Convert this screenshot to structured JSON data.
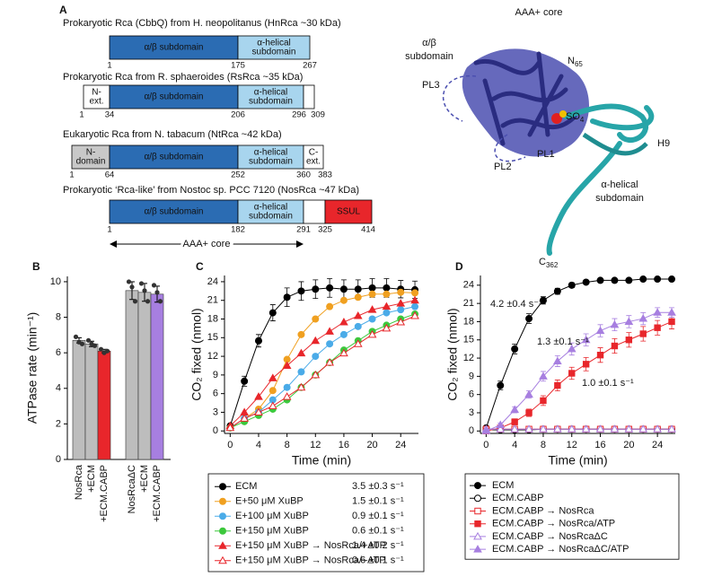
{
  "panel_labels": [
    "A",
    "B",
    "C",
    "D"
  ],
  "domain_diagram": {
    "constructs": [
      {
        "title": "Prokaryotic Rca (CbbQ) from H. neopolitanus (HnRca ~30 kDa)",
        "segments": [
          {
            "label": [
              "α/β subdomain"
            ],
            "color": "#2b6cb3"
          },
          {
            "label": [
              "α-helical",
              "subdomain"
            ],
            "color": "#a8d5ee"
          }
        ],
        "numbers": [
          1,
          175,
          267
        ]
      },
      {
        "title": "Prokaryotic Rca from R. sphaeroides (RsRca ~35 kDa)",
        "segments": [
          {
            "label": [
              "N-",
              "ext."
            ],
            "color": "#ffffff"
          },
          {
            "label": [
              "α/β subdomain"
            ],
            "color": "#2b6cb3"
          },
          {
            "label": [
              "α-helical",
              "subdomain"
            ],
            "color": "#a8d5ee"
          },
          {
            "label": [],
            "color": "#ffffff"
          }
        ],
        "numbers": [
          1,
          34,
          206,
          296,
          309
        ]
      },
      {
        "title": "Eukaryotic Rca from N. tabacum (NtRca ~42 kDa)",
        "segments": [
          {
            "label": [
              "N-",
              "domain"
            ],
            "color": "#c8c8c8"
          },
          {
            "label": [
              "α/β subdomain"
            ],
            "color": "#2b6cb3"
          },
          {
            "label": [
              "α-helical",
              "subdomain"
            ],
            "color": "#a8d5ee"
          },
          {
            "label": [
              "C-",
              "ext."
            ],
            "color": "#ffffff"
          }
        ],
        "numbers": [
          1,
          64,
          252,
          360,
          383
        ]
      },
      {
        "title": "Prokaryotic ‘Rca-like’ from Nostoc sp. PCC 7120 (NosRca ~47 kDa)",
        "segments": [
          {
            "label": [
              "α/β subdomain"
            ],
            "color": "#2b6cb3"
          },
          {
            "label": [
              "α-helical",
              "subdomain"
            ],
            "color": "#a8d5ee"
          },
          {
            "label": [],
            "color": "#ffffff"
          },
          {
            "label": [
              "SSUL"
            ],
            "color": "#e8262b"
          }
        ],
        "numbers": [
          1,
          182,
          291,
          325,
          414
        ]
      }
    ],
    "core_label": "AAA+ core"
  },
  "structure": {
    "title": "AAA+ core",
    "ab_label": [
      "α/β",
      "subdomain"
    ],
    "n_term": {
      "text": "N",
      "sub": "65"
    },
    "pl3": "PL3",
    "pl1": "PL1",
    "pl2": "PL2",
    "so4": {
      "text": "SO",
      "sub": "4"
    },
    "h9": "H9",
    "helical_label": [
      "α-helical",
      "subdomain"
    ],
    "c_term": {
      "text": "C",
      "sub": "362"
    }
  },
  "chart_data": [
    {
      "type": "bar",
      "ylabel": "ATPase rate (min⁻¹)",
      "categories": [
        "NosRca",
        "+ECM",
        "+ECM.CABP",
        "NosRcaΔC",
        "+ECM",
        "+ECM.CABP"
      ],
      "values": [
        6.7,
        6.5,
        6.1,
        9.5,
        9.4,
        9.3
      ],
      "errors": [
        0.15,
        0.15,
        0.1,
        0.5,
        0.5,
        0.45
      ],
      "points": [
        [
          6.9,
          6.6,
          6.5
        ],
        [
          6.7,
          6.5,
          6.4
        ],
        [
          6.2,
          6.0,
          6.1
        ],
        [
          10.0,
          9.7,
          8.9
        ],
        [
          9.9,
          9.5,
          8.9
        ],
        [
          9.8,
          9.4,
          8.9
        ]
      ],
      "colors": [
        "#bdbdbd",
        "#bdbdbd",
        "#e8262b",
        "#bdbdbd",
        "#bdbdbd",
        "#a77fe0"
      ],
      "ylim": [
        0,
        10.3
      ],
      "yticks": [
        0,
        2,
        4,
        6,
        8,
        10
      ]
    },
    {
      "type": "line",
      "xlabel": "Time (min)",
      "ylabel": "CO₂ fixed (nmol)",
      "x": [
        0,
        2,
        4,
        6,
        8,
        10,
        12,
        14,
        16,
        18,
        20,
        22,
        24,
        26
      ],
      "xlim": [
        -0.8,
        26.5
      ],
      "xticks": [
        0,
        4,
        8,
        12,
        16,
        20,
        24
      ],
      "ylim": [
        -0.4,
        25
      ],
      "yticks": [
        0,
        3,
        6,
        9,
        12,
        15,
        18,
        21,
        24
      ],
      "series": [
        {
          "name": "ECM",
          "rate": "3.5 ±0.3 s⁻¹",
          "color": "#000000",
          "marker": "circle",
          "filled": true,
          "values": [
            0.8,
            8,
            14.5,
            19,
            21.5,
            22.5,
            22.8,
            23,
            22.8,
            22.8,
            23,
            23,
            22.8,
            22.7
          ],
          "errors": [
            0.3,
            0.8,
            1,
            1.3,
            1.5,
            1.5,
            1.5,
            1.5,
            1.5,
            1.5,
            1.5,
            1.5,
            1.4,
            1.4
          ]
        },
        {
          "name": "E+50 μM XuBP",
          "rate": "1.5 ±0.1 s⁻¹",
          "color": "#f0a020",
          "marker": "circle",
          "filled": true,
          "values": [
            0.5,
            2,
            3.5,
            6.5,
            11.5,
            15.5,
            18,
            20,
            21,
            21.5,
            22,
            22,
            22.3,
            22.2
          ]
        },
        {
          "name": "E+100 μM XuBP",
          "rate": "0.9 ±0.1 s⁻¹",
          "color": "#4aabe8",
          "marker": "circle",
          "filled": true,
          "values": [
            0.5,
            2,
            3,
            5,
            7,
            9.5,
            12,
            14,
            15.5,
            16.8,
            18,
            19,
            19.5,
            20
          ]
        },
        {
          "name": "E+150 μM XuBP",
          "rate": "0.6 ±0.1 s⁻¹",
          "color": "#3cc83c",
          "marker": "circle",
          "filled": true,
          "values": [
            0.5,
            1.5,
            2.5,
            3.5,
            5,
            7,
            9,
            11,
            13,
            14.5,
            16,
            17,
            18,
            18.8
          ]
        },
        {
          "name": "E+150 μM XuBP → NosRca/+ATP",
          "rate": "1.4 ±0.2 s⁻¹",
          "color": "#e8262b",
          "marker": "triangle",
          "filled": true,
          "values": [
            0.8,
            3,
            5.5,
            8.5,
            10.5,
            12.5,
            14.5,
            16,
            17.5,
            18.5,
            19.5,
            20,
            20.5,
            21
          ]
        },
        {
          "name": "E+150 μM XuBP → NosRca/–ATP",
          "rate": "0.6 ±0.1 s⁻¹",
          "color": "#e8262b",
          "marker": "triangle",
          "filled": false,
          "values": [
            0.5,
            2,
            3,
            4,
            5.5,
            7,
            9,
            11,
            12.5,
            14,
            15.5,
            16.5,
            17.5,
            18.5
          ]
        }
      ]
    },
    {
      "type": "line",
      "xlabel": "Time (min)",
      "ylabel": "CO₂ fixed (nmol)",
      "x": [
        0,
        2,
        4,
        6,
        8,
        10,
        12,
        14,
        16,
        18,
        20,
        22,
        24,
        26
      ],
      "xlim": [
        -0.8,
        26.5
      ],
      "xticks": [
        0,
        4,
        8,
        12,
        16,
        20,
        24
      ],
      "ylim": [
        -0.4,
        25.6
      ],
      "yticks": [
        0,
        3,
        6,
        9,
        12,
        15,
        18,
        21,
        24
      ],
      "annotations": [
        "4.2 ±0.4 s⁻¹",
        "1.3 ±0.1 s⁻¹",
        "1.0 ±0.1 s⁻¹"
      ],
      "series": [
        {
          "name": "ECM",
          "color": "#000000",
          "marker": "circle",
          "filled": true,
          "values": [
            0.5,
            7.5,
            13.5,
            18.5,
            21.5,
            23,
            24,
            24.5,
            24.8,
            24.8,
            24.8,
            25,
            25,
            25
          ],
          "errors": [
            0.2,
            0.7,
            0.8,
            0.8,
            0.6,
            0.5,
            0.4,
            0.3,
            0.3,
            0.3,
            0.3,
            0.3,
            0.3,
            0.3
          ]
        },
        {
          "name": "ECM.CABP",
          "color": "#000000",
          "marker": "circle",
          "filled": false,
          "values": [
            0.2,
            0.2,
            0.2,
            0.2,
            0.3,
            0.3,
            0.3,
            0.3,
            0.3,
            0.3,
            0.3,
            0.3,
            0.3,
            0.3
          ]
        },
        {
          "name": "ECM.CABP → NosRca",
          "color": "#e8262b",
          "marker": "square",
          "filled": false,
          "values": [
            0.3,
            0.3,
            0.3,
            0.3,
            0.3,
            0.3,
            0.3,
            0.3,
            0.3,
            0.3,
            0.3,
            0.3,
            0.3,
            0.3
          ]
        },
        {
          "name": "ECM.CABP → NosRca/ATP",
          "color": "#e8262b",
          "marker": "square",
          "filled": true,
          "values": [
            0,
            0.5,
            1.5,
            3,
            5,
            7.5,
            9.5,
            11,
            12.5,
            14,
            15,
            16,
            17,
            18
          ],
          "errors": [
            0.1,
            0.3,
            0.5,
            0.6,
            0.8,
            0.9,
            1,
            1.1,
            1.2,
            1.2,
            1.2,
            1.2,
            1.2,
            1.2
          ]
        },
        {
          "name": "ECM.CABP → NosRcaΔC",
          "color": "#a77fe0",
          "marker": "triangle",
          "filled": false,
          "values": [
            0.3,
            0.3,
            0.3,
            0.3,
            0.3,
            0.3,
            0.3,
            0.3,
            0.3,
            0.3,
            0.3,
            0.3,
            0.3,
            0.3
          ]
        },
        {
          "name": "ECM.CABP → NosRcaΔC/ATP",
          "color": "#a77fe0",
          "marker": "triangle",
          "filled": true,
          "values": [
            0,
            1,
            3.5,
            6,
            9,
            11.5,
            13.5,
            15,
            16.5,
            17.5,
            18,
            18.5,
            19.5,
            19.5
          ],
          "errors": [
            0.1,
            0.3,
            0.5,
            0.6,
            0.8,
            0.9,
            1,
            1,
            1,
            1,
            1,
            1,
            0.8,
            0.8
          ]
        }
      ]
    }
  ]
}
